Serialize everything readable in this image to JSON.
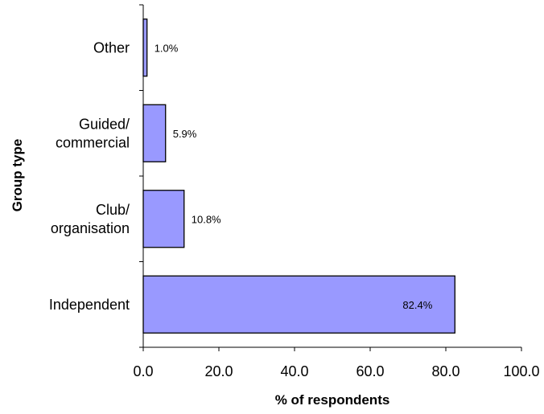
{
  "chart_data": {
    "type": "bar",
    "orientation": "horizontal",
    "categories": [
      [
        "Other"
      ],
      [
        "Guided/",
        "commercial"
      ],
      [
        "Club/",
        "organisation"
      ],
      [
        "Independent"
      ]
    ],
    "values": [
      1.0,
      5.9,
      10.8,
      82.4
    ],
    "data_labels": [
      "1.0%",
      "5.9%",
      "10.8%",
      "82.4%"
    ],
    "xlabel": "% of respondents",
    "ylabel": "Group type",
    "xlim": [
      0,
      100
    ],
    "xticks": [
      "0.0",
      "20.0",
      "40.0",
      "60.0",
      "80.0",
      "100.0"
    ],
    "grid": false,
    "bar_color": "#9999ff"
  }
}
